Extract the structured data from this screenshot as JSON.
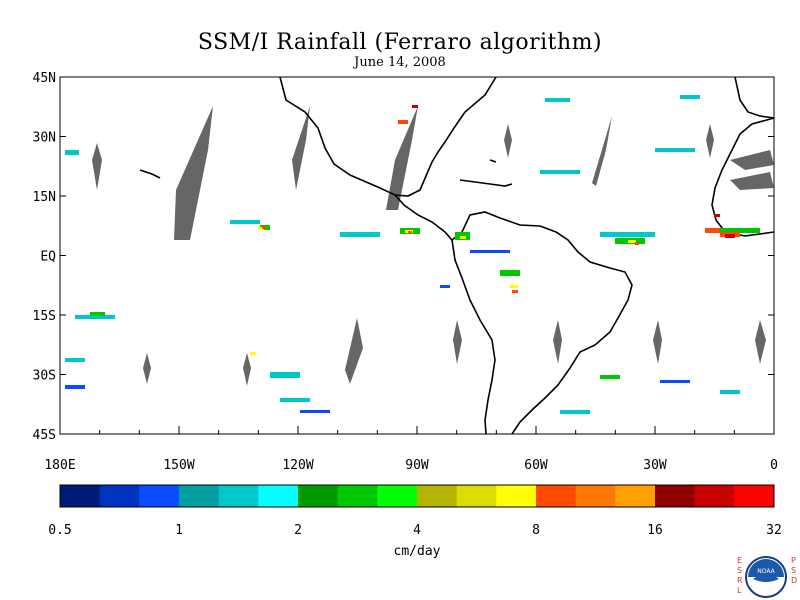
{
  "title": "SSM/I Rainfall (Ferraro algorithm)",
  "subtitle": "June 14, 2008",
  "map": {
    "lat_labels": [
      "45N",
      "30N",
      "15N",
      "EQ",
      "15S",
      "30S",
      "45S"
    ],
    "lat_values": [
      45,
      30,
      15,
      0,
      -15,
      -30,
      -45
    ],
    "lon_labels": [
      "180E",
      "150W",
      "120W",
      "90W",
      "60W",
      "30W",
      "0"
    ],
    "lon_values": [
      -180,
      -150,
      -120,
      -90,
      -60,
      -30,
      0
    ],
    "lon_range": [
      -180,
      0
    ],
    "lat_range": [
      -45,
      45
    ],
    "swath_gap_color": "#666666"
  },
  "colorbar": {
    "unit_label": "cm/day",
    "tick_labels": [
      "0.5",
      "1",
      "2",
      "4",
      "8",
      "16",
      "32"
    ],
    "colors": [
      "#001a7a",
      "#0033c0",
      "#0a4bff",
      "#00a0a0",
      "#00c8c8",
      "#00ffff",
      "#009900",
      "#00c800",
      "#00ff00",
      "#b4b400",
      "#dcdc00",
      "#ffff00",
      "#ff4800",
      "#ff7800",
      "#ffa000",
      "#900000",
      "#c80000",
      "#ff0000"
    ]
  },
  "logo": {
    "left_text": [
      "E",
      "S",
      "R",
      "L"
    ],
    "right_text": [
      "P",
      "S",
      "D"
    ],
    "center": "NOAA"
  }
}
